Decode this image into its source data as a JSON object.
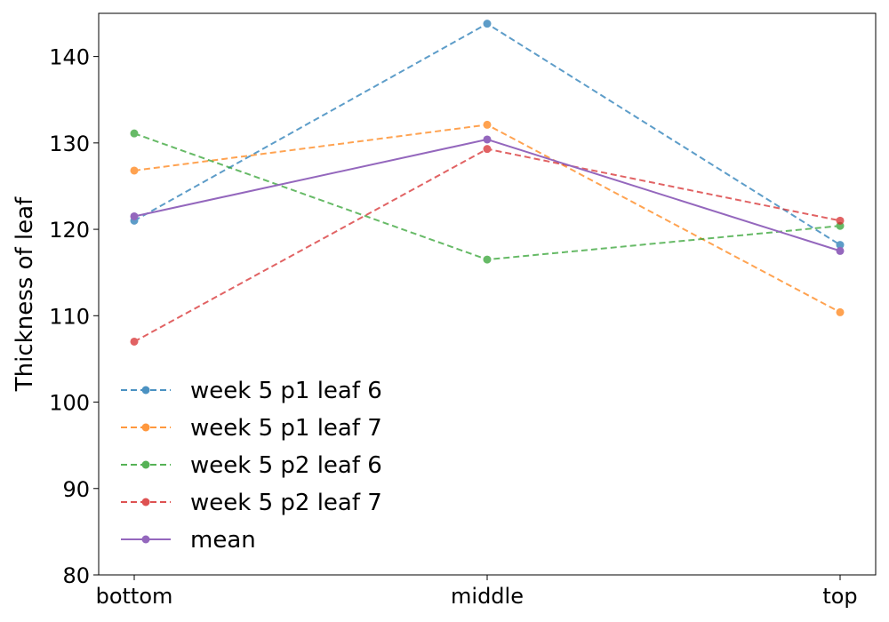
{
  "chart_data": {
    "type": "line",
    "title": "",
    "xlabel": "",
    "ylabel": "Thickness of leaf",
    "categories": [
      "bottom",
      "middle",
      "top"
    ],
    "ylim": [
      80,
      145
    ],
    "yticks": [
      80,
      90,
      100,
      110,
      120,
      130,
      140
    ],
    "grid": false,
    "legend_position": "lower-left",
    "series": [
      {
        "name": "week 5 p1 leaf 6",
        "values": [
          121.0,
          143.8,
          118.2
        ],
        "color": "#1f77b4",
        "style": "dashed"
      },
      {
        "name": "week 5 p1 leaf 7",
        "values": [
          126.8,
          132.1,
          110.4
        ],
        "color": "#ff7f0e",
        "style": "dashed"
      },
      {
        "name": "week 5 p2 leaf 6",
        "values": [
          131.1,
          116.5,
          120.4
        ],
        "color": "#2ca02c",
        "style": "dashed"
      },
      {
        "name": "week 5 p2 leaf 7",
        "values": [
          107.0,
          129.3,
          121.0
        ],
        "color": "#d62728",
        "style": "dashed"
      },
      {
        "name": "mean",
        "values": [
          121.5,
          130.4,
          117.5
        ],
        "color": "#9467bd",
        "style": "solid"
      }
    ]
  }
}
